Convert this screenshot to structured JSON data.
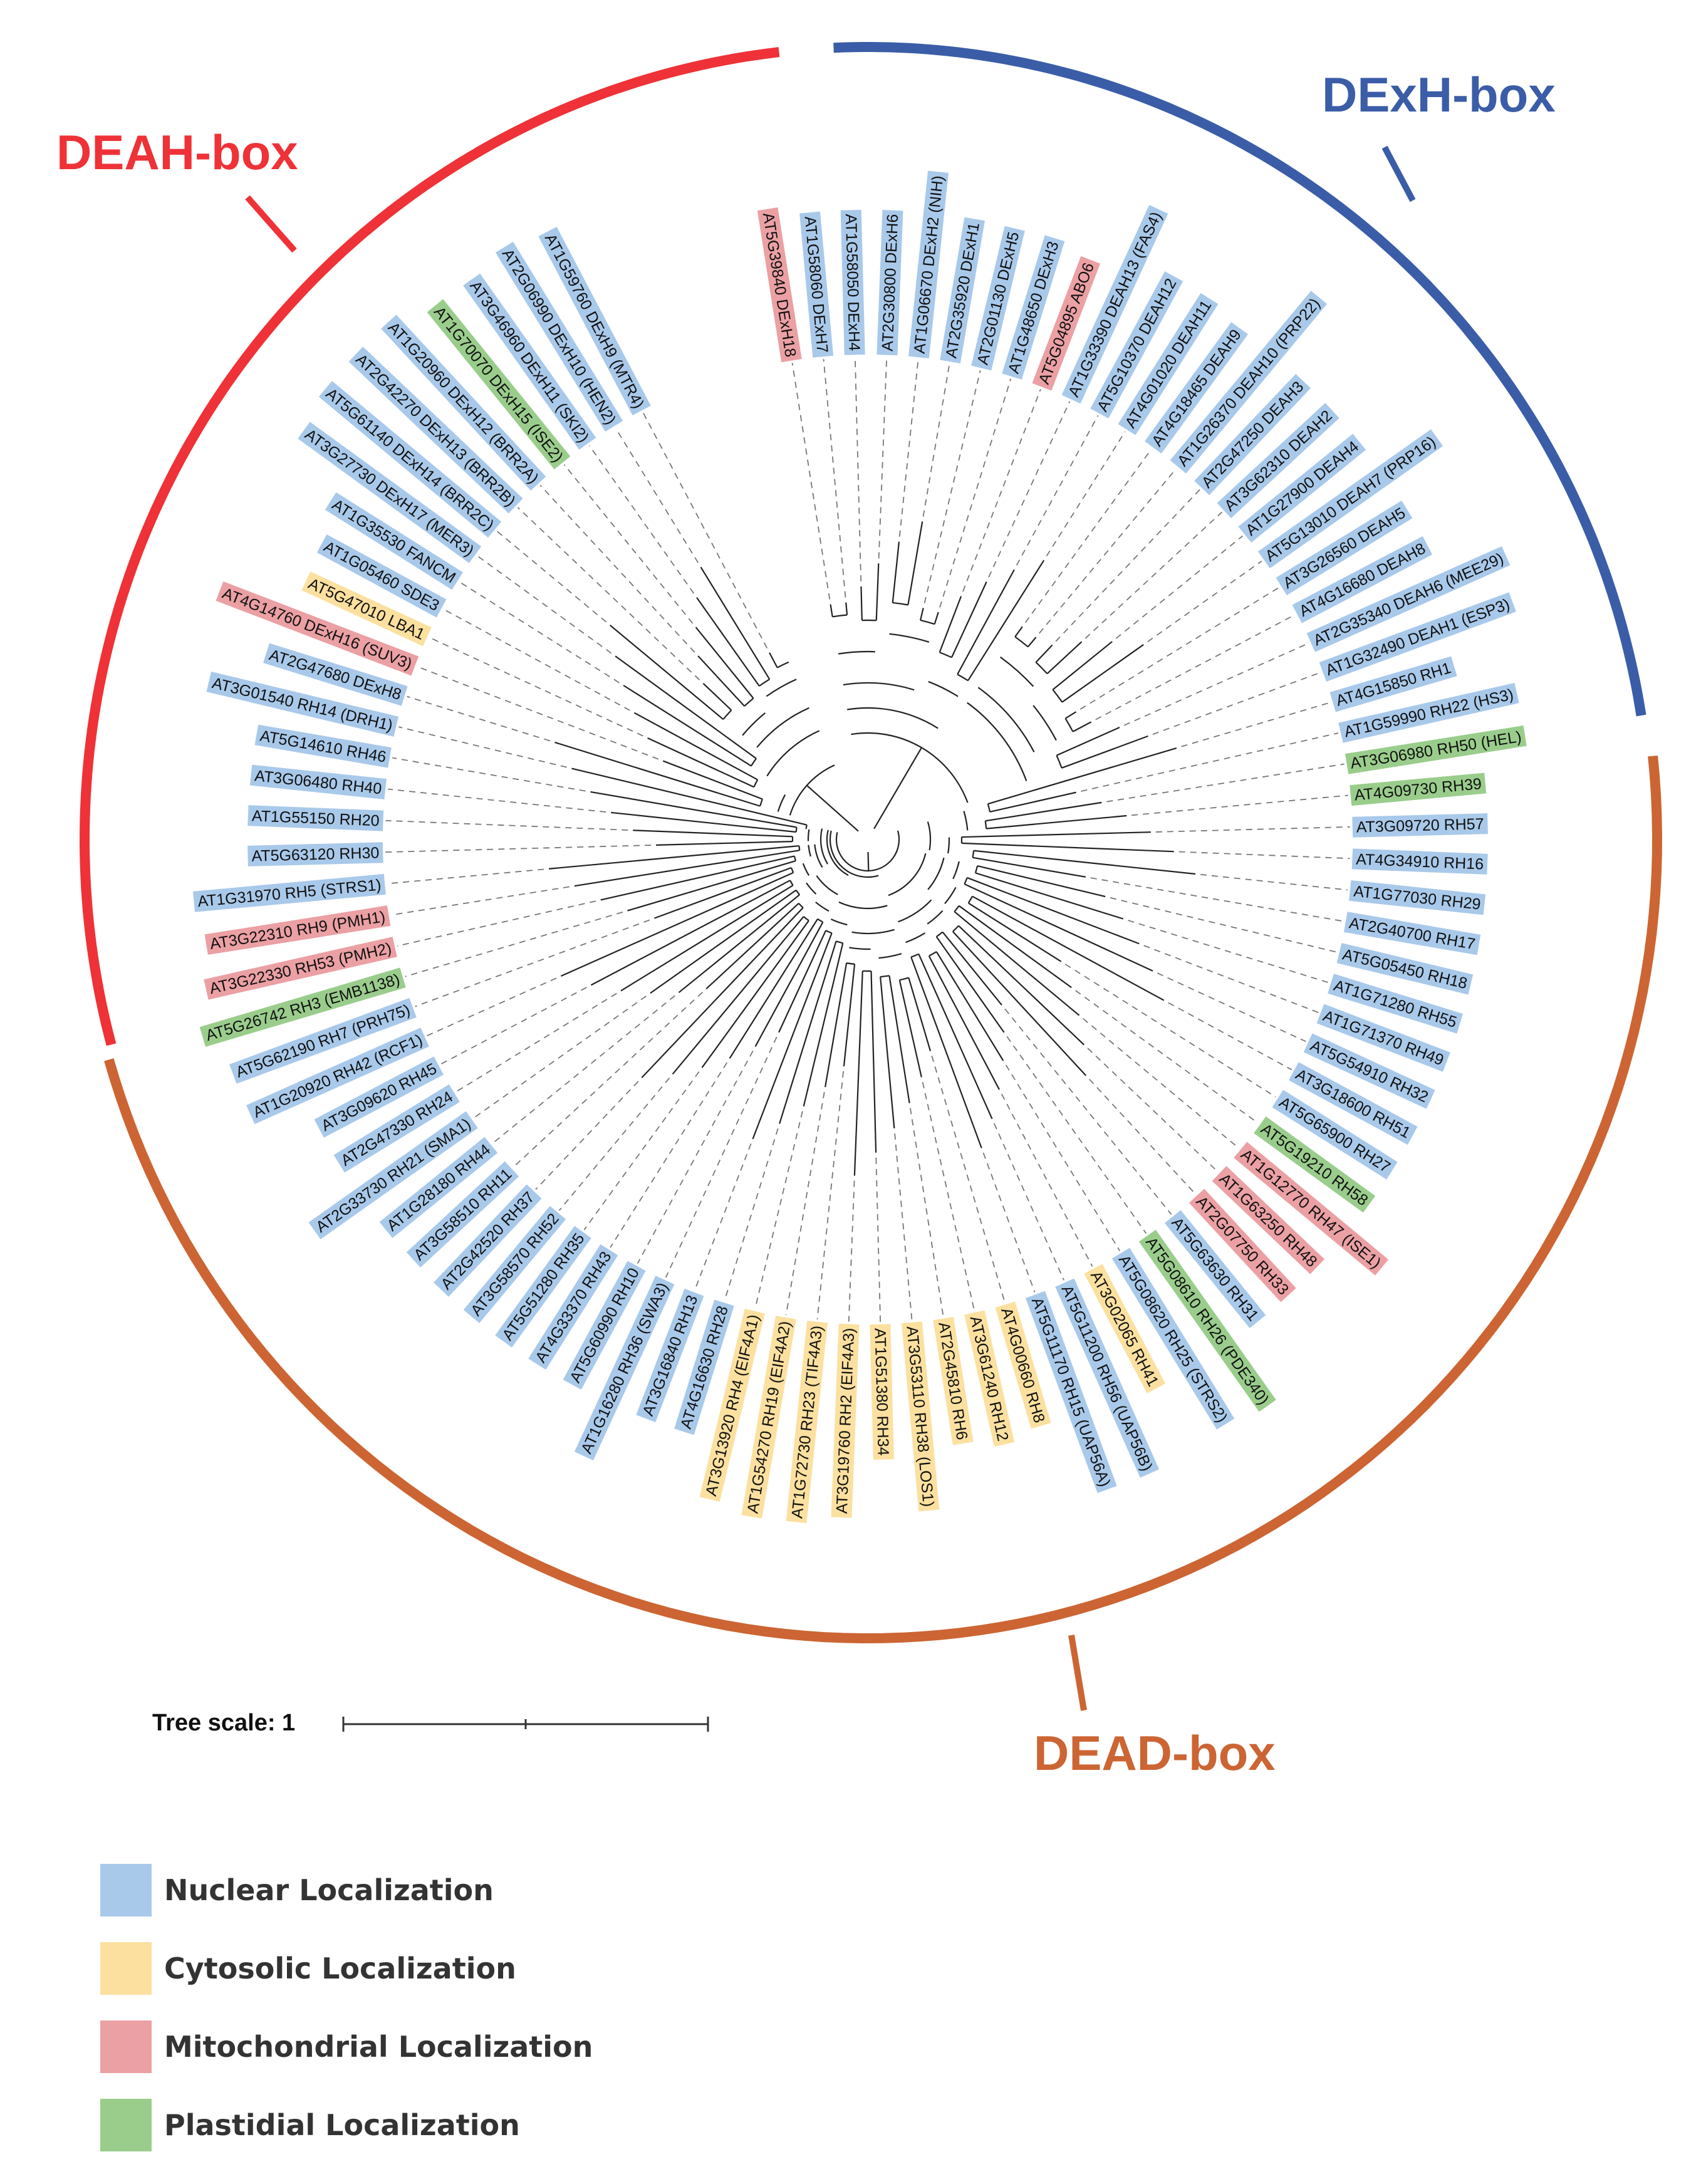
{
  "colors": {
    "nuclear": "#a9c9ea",
    "cytosolic": "#fbe09f",
    "mitochondrial": "#eba0a4",
    "plastidial": "#9acd8c",
    "deah": "#ee3237",
    "dexh": "#3b5da8",
    "dead": "#cc6533"
  },
  "families": [
    {
      "name": "DEAH-box",
      "color": "#ee3237"
    },
    {
      "name": "DExH-box",
      "color": "#3b5da8"
    },
    {
      "name": "DEAD-box",
      "color": "#cc6533"
    }
  ],
  "scale": {
    "label": "Tree scale: 1"
  },
  "legend": [
    {
      "label": "Nuclear Localization",
      "color": "#a9c9ea"
    },
    {
      "label": "Cytosolic Localization",
      "color": "#fbe09f"
    },
    {
      "label": "Mitochondrial Localization",
      "color": "#eba0a4"
    },
    {
      "label": "Plastidial Localization",
      "color": "#9acd8c"
    }
  ],
  "leaves": [
    {
      "label": "AT5G39840 DExH18",
      "loc": "mitochondrial"
    },
    {
      "label": "AT1G58060 DExH7",
      "loc": "nuclear"
    },
    {
      "label": "AT1G58050 DExH4",
      "loc": "nuclear"
    },
    {
      "label": "AT2G30800 DExH6",
      "loc": "nuclear"
    },
    {
      "label": "AT1G06670 DExH2 (NIH)",
      "loc": "nuclear"
    },
    {
      "label": "AT2G35920 DExH1",
      "loc": "nuclear"
    },
    {
      "label": "AT2G01130 DExH5",
      "loc": "nuclear"
    },
    {
      "label": "AT1G48650 DExH3",
      "loc": "nuclear"
    },
    {
      "label": "AT5G04895 ABO6",
      "loc": "mitochondrial"
    },
    {
      "label": "AT1G33390 DEAH13 (FAS4)",
      "loc": "nuclear"
    },
    {
      "label": "AT5G10370 DEAH12",
      "loc": "nuclear"
    },
    {
      "label": "AT4G01020 DEAH11",
      "loc": "nuclear"
    },
    {
      "label": "AT4G18465 DEAH9",
      "loc": "nuclear"
    },
    {
      "label": "AT1G26370 DEAH10 (PRP22)",
      "loc": "nuclear"
    },
    {
      "label": "AT2G47250 DEAH3",
      "loc": "nuclear"
    },
    {
      "label": "AT3G62310 DEAH2",
      "loc": "nuclear"
    },
    {
      "label": "AT1G27900 DEAH4",
      "loc": "nuclear"
    },
    {
      "label": "AT5G13010 DEAH7 (PRP16)",
      "loc": "nuclear"
    },
    {
      "label": "AT3G26560 DEAH5",
      "loc": "nuclear"
    },
    {
      "label": "AT4G16680 DEAH8",
      "loc": "nuclear"
    },
    {
      "label": "AT2G35340 DEAH6 (MEE29)",
      "loc": "nuclear"
    },
    {
      "label": "AT1G32490 DEAH1 (ESP3)",
      "loc": "nuclear"
    },
    {
      "label": "AT4G15850 RH1",
      "loc": "nuclear"
    },
    {
      "label": "AT1G59990 RH22 (HS3)",
      "loc": "nuclear"
    },
    {
      "label": "AT3G06980 RH50 (HEL)",
      "loc": "plastidial"
    },
    {
      "label": "AT4G09730 RH39",
      "loc": "plastidial"
    },
    {
      "label": "AT3G09720 RH57",
      "loc": "nuclear"
    },
    {
      "label": "AT4G34910 RH16",
      "loc": "nuclear"
    },
    {
      "label": "AT1G77030 RH29",
      "loc": "nuclear"
    },
    {
      "label": "AT2G40700 RH17",
      "loc": "nuclear"
    },
    {
      "label": "AT5G05450 RH18",
      "loc": "nuclear"
    },
    {
      "label": "AT1G71280 RH55",
      "loc": "nuclear"
    },
    {
      "label": "AT1G71370 RH49",
      "loc": "nuclear"
    },
    {
      "label": "AT5G54910 RH32",
      "loc": "nuclear"
    },
    {
      "label": "AT3G18600 RH51",
      "loc": "nuclear"
    },
    {
      "label": "AT5G65900 RH27",
      "loc": "nuclear"
    },
    {
      "label": "AT5G19210 RH58",
      "loc": "plastidial"
    },
    {
      "label": "AT1G12770 RH47 (ISE1)",
      "loc": "mitochondrial"
    },
    {
      "label": "AT1G63250 RH48",
      "loc": "mitochondrial"
    },
    {
      "label": "AT2G07750 RH33",
      "loc": "mitochondrial"
    },
    {
      "label": "AT5G63630 RH31",
      "loc": "nuclear"
    },
    {
      "label": "AT5G08610 RH26 (PDE340)",
      "loc": "plastidial"
    },
    {
      "label": "AT5G08620 RH25 (STRS2)",
      "loc": "nuclear"
    },
    {
      "label": "AT3G02065 RH41",
      "loc": "cytosolic"
    },
    {
      "label": "AT5G11200 RH56 (UAP56B)",
      "loc": "nuclear"
    },
    {
      "label": "AT5G11170 RH15 (UAP56A)",
      "loc": "nuclear"
    },
    {
      "label": "AT4G00660 RH8",
      "loc": "cytosolic"
    },
    {
      "label": "AT3G61240 RH12",
      "loc": "cytosolic"
    },
    {
      "label": "AT2G45810 RH6",
      "loc": "cytosolic"
    },
    {
      "label": "AT3G53110 RH38 (LOS1)",
      "loc": "cytosolic"
    },
    {
      "label": "AT1G51380 RH34",
      "loc": "cytosolic"
    },
    {
      "label": "AT3G19760 RH2 (EIF4A3)",
      "loc": "cytosolic"
    },
    {
      "label": "AT1G72730 RH23 (TIF4A3)",
      "loc": "cytosolic"
    },
    {
      "label": "AT1G54270 RH19 (EIF4A2)",
      "loc": "cytosolic"
    },
    {
      "label": "AT3G13920 RH4 (EIF4A1)",
      "loc": "cytosolic"
    },
    {
      "label": "AT4G16630 RH28",
      "loc": "nuclear"
    },
    {
      "label": "AT3G16840 RH13",
      "loc": "nuclear"
    },
    {
      "label": "AT1G16280 RH36 (SWA3)",
      "loc": "nuclear"
    },
    {
      "label": "AT5G60990 RH10",
      "loc": "nuclear"
    },
    {
      "label": "AT4G33370 RH43",
      "loc": "nuclear"
    },
    {
      "label": "AT5G51280 RH35",
      "loc": "nuclear"
    },
    {
      "label": "AT3G58570 RH52",
      "loc": "nuclear"
    },
    {
      "label": "AT2G42520 RH37",
      "loc": "nuclear"
    },
    {
      "label": "AT3G58510 RH11",
      "loc": "nuclear"
    },
    {
      "label": "AT1G28180 RH44",
      "loc": "nuclear"
    },
    {
      "label": "AT2G33730 RH21 (SMA1)",
      "loc": "nuclear"
    },
    {
      "label": "AT2G47330 RH24",
      "loc": "nuclear"
    },
    {
      "label": "AT3G09620 RH45",
      "loc": "nuclear"
    },
    {
      "label": "AT1G20920 RH42 (RCF1)",
      "loc": "nuclear"
    },
    {
      "label": "AT5G62190 RH7 (PRH75)",
      "loc": "nuclear"
    },
    {
      "label": "AT5G26742 RH3 (EMB1138)",
      "loc": "plastidial"
    },
    {
      "label": "AT3G22330 RH53 (PMH2)",
      "loc": "mitochondrial"
    },
    {
      "label": "AT3G22310 RH9 (PMH1)",
      "loc": "mitochondrial"
    },
    {
      "label": "AT1G31970 RH5 (STRS1)",
      "loc": "nuclear"
    },
    {
      "label": "AT5G63120 RH30",
      "loc": "nuclear"
    },
    {
      "label": "AT1G55150 RH20",
      "loc": "nuclear"
    },
    {
      "label": "AT3G06480 RH40",
      "loc": "nuclear"
    },
    {
      "label": "AT5G14610 RH46",
      "loc": "nuclear"
    },
    {
      "label": "AT3G01540 RH14 (DRH1)",
      "loc": "nuclear"
    },
    {
      "label": "AT2G47680 DExH8",
      "loc": "nuclear"
    },
    {
      "label": "AT4G14760 DExH16 (SUV3)",
      "loc": "mitochondrial"
    },
    {
      "label": "AT5G47010 LBA1",
      "loc": "cytosolic"
    },
    {
      "label": "AT1G05460 SDE3",
      "loc": "nuclear"
    },
    {
      "label": "AT1G35530 FANCM",
      "loc": "nuclear"
    },
    {
      "label": "AT3G27730 DExH17 (MER3)",
      "loc": "nuclear"
    },
    {
      "label": "AT5G61140 DExH14 (BRR2C)",
      "loc": "nuclear"
    },
    {
      "label": "AT2G42270 DExH13 (BRR2B)",
      "loc": "nuclear"
    },
    {
      "label": "AT1G20960 DExH12 (BRR2A)",
      "loc": "nuclear"
    },
    {
      "label": "AT1G70070 DExH15 (ISE2)",
      "loc": "plastidial"
    },
    {
      "label": "AT3G46960 DExH11 (SKI2)",
      "loc": "nuclear"
    },
    {
      "label": "AT2G06990 DExH10 (HEN2)",
      "loc": "nuclear"
    },
    {
      "label": "AT1G59760 DExH9 (MTR4)",
      "loc": "nuclear"
    }
  ]
}
